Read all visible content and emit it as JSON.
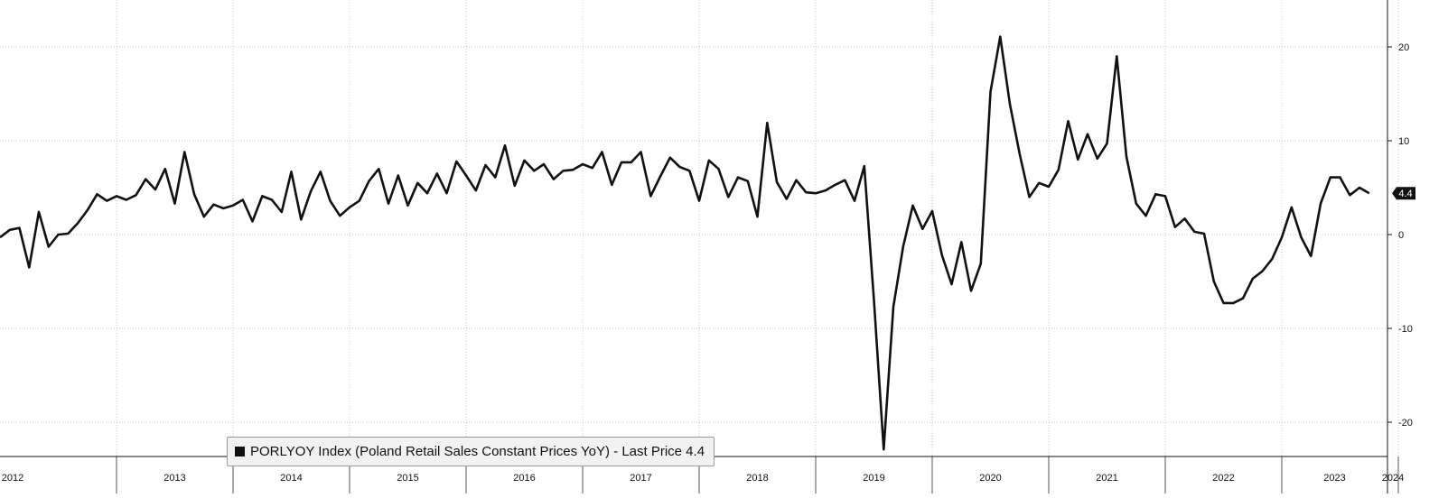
{
  "chart_data": {
    "type": "line",
    "title": "",
    "xlabel": "",
    "ylabel": "",
    "ylim": [
      -23,
      25
    ],
    "y_ticks": [
      20,
      10,
      0,
      -10,
      -20
    ],
    "y_tick_labels": [
      "20",
      "10",
      "0",
      "-10",
      "-20"
    ],
    "x_year_labels": [
      "2012",
      "2013",
      "2014",
      "2015",
      "2016",
      "2017",
      "2018",
      "2019",
      "2020",
      "2021",
      "2022",
      "2023",
      "2024"
    ],
    "grid": true,
    "legend_position": "bottom-left",
    "line_color": "#111111",
    "series": [
      {
        "name": "PORLYOY Index (Poland Retail Sales Constant Prices YoY) - Last Price 4.4",
        "start": "2012-01",
        "frequency": "monthly",
        "values": [
          -0.3,
          0.5,
          0.7,
          -3.5,
          2.4,
          -1.3,
          0.0,
          0.1,
          1.2,
          2.6,
          4.3,
          3.6,
          4.1,
          3.7,
          4.2,
          5.9,
          4.8,
          7.0,
          3.3,
          8.8,
          4.3,
          1.9,
          3.2,
          2.8,
          3.1,
          3.7,
          1.4,
          4.1,
          3.7,
          2.4,
          6.7,
          1.6,
          4.6,
          6.7,
          3.6,
          2.0,
          2.9,
          3.6,
          5.7,
          7.0,
          3.3,
          6.3,
          3.1,
          5.5,
          4.4,
          6.5,
          4.4,
          7.8,
          6.3,
          4.7,
          7.4,
          6.1,
          9.5,
          5.2,
          7.9,
          6.8,
          7.5,
          5.9,
          6.8,
          6.9,
          7.5,
          7.1,
          8.8,
          5.3,
          7.7,
          7.7,
          8.8,
          4.1,
          6.2,
          8.2,
          7.2,
          6.8,
          3.6,
          7.9,
          7.0,
          4.0,
          6.1,
          5.7,
          1.9,
          11.9,
          5.6,
          3.8,
          5.8,
          4.5,
          4.4,
          4.7,
          5.3,
          5.8,
          3.6,
          7.3,
          -7.0,
          -22.9,
          -7.7,
          -1.3,
          3.1,
          0.6,
          2.5,
          -2.2,
          -5.3,
          -0.8,
          -6.0,
          -3.1,
          15.2,
          21.1,
          13.9,
          8.6,
          4.0,
          5.5,
          5.1,
          6.9,
          12.1,
          8.0,
          10.7,
          8.1,
          9.7,
          19.0,
          8.3,
          3.3,
          2.0,
          4.3,
          4.1,
          0.8,
          1.7,
          0.3,
          0.1,
          -5.0,
          -7.3,
          -7.3,
          -6.8,
          -4.7,
          -3.9,
          -2.6,
          -0.3,
          2.9,
          -0.3,
          -2.3,
          3.3,
          6.1,
          6.1,
          4.2,
          5.0,
          4.4
        ]
      }
    ]
  },
  "legend": {
    "text": "PORLYOY Index (Poland Retail Sales Constant Prices YoY) - Last Price 4.4"
  },
  "last_price": {
    "label": "4.4",
    "value": 4.4,
    "badge_color": "#111111"
  },
  "colors": {
    "background": "#ffffff",
    "grid": "#c8c8c8",
    "line": "#111111",
    "axis": "#111111"
  }
}
